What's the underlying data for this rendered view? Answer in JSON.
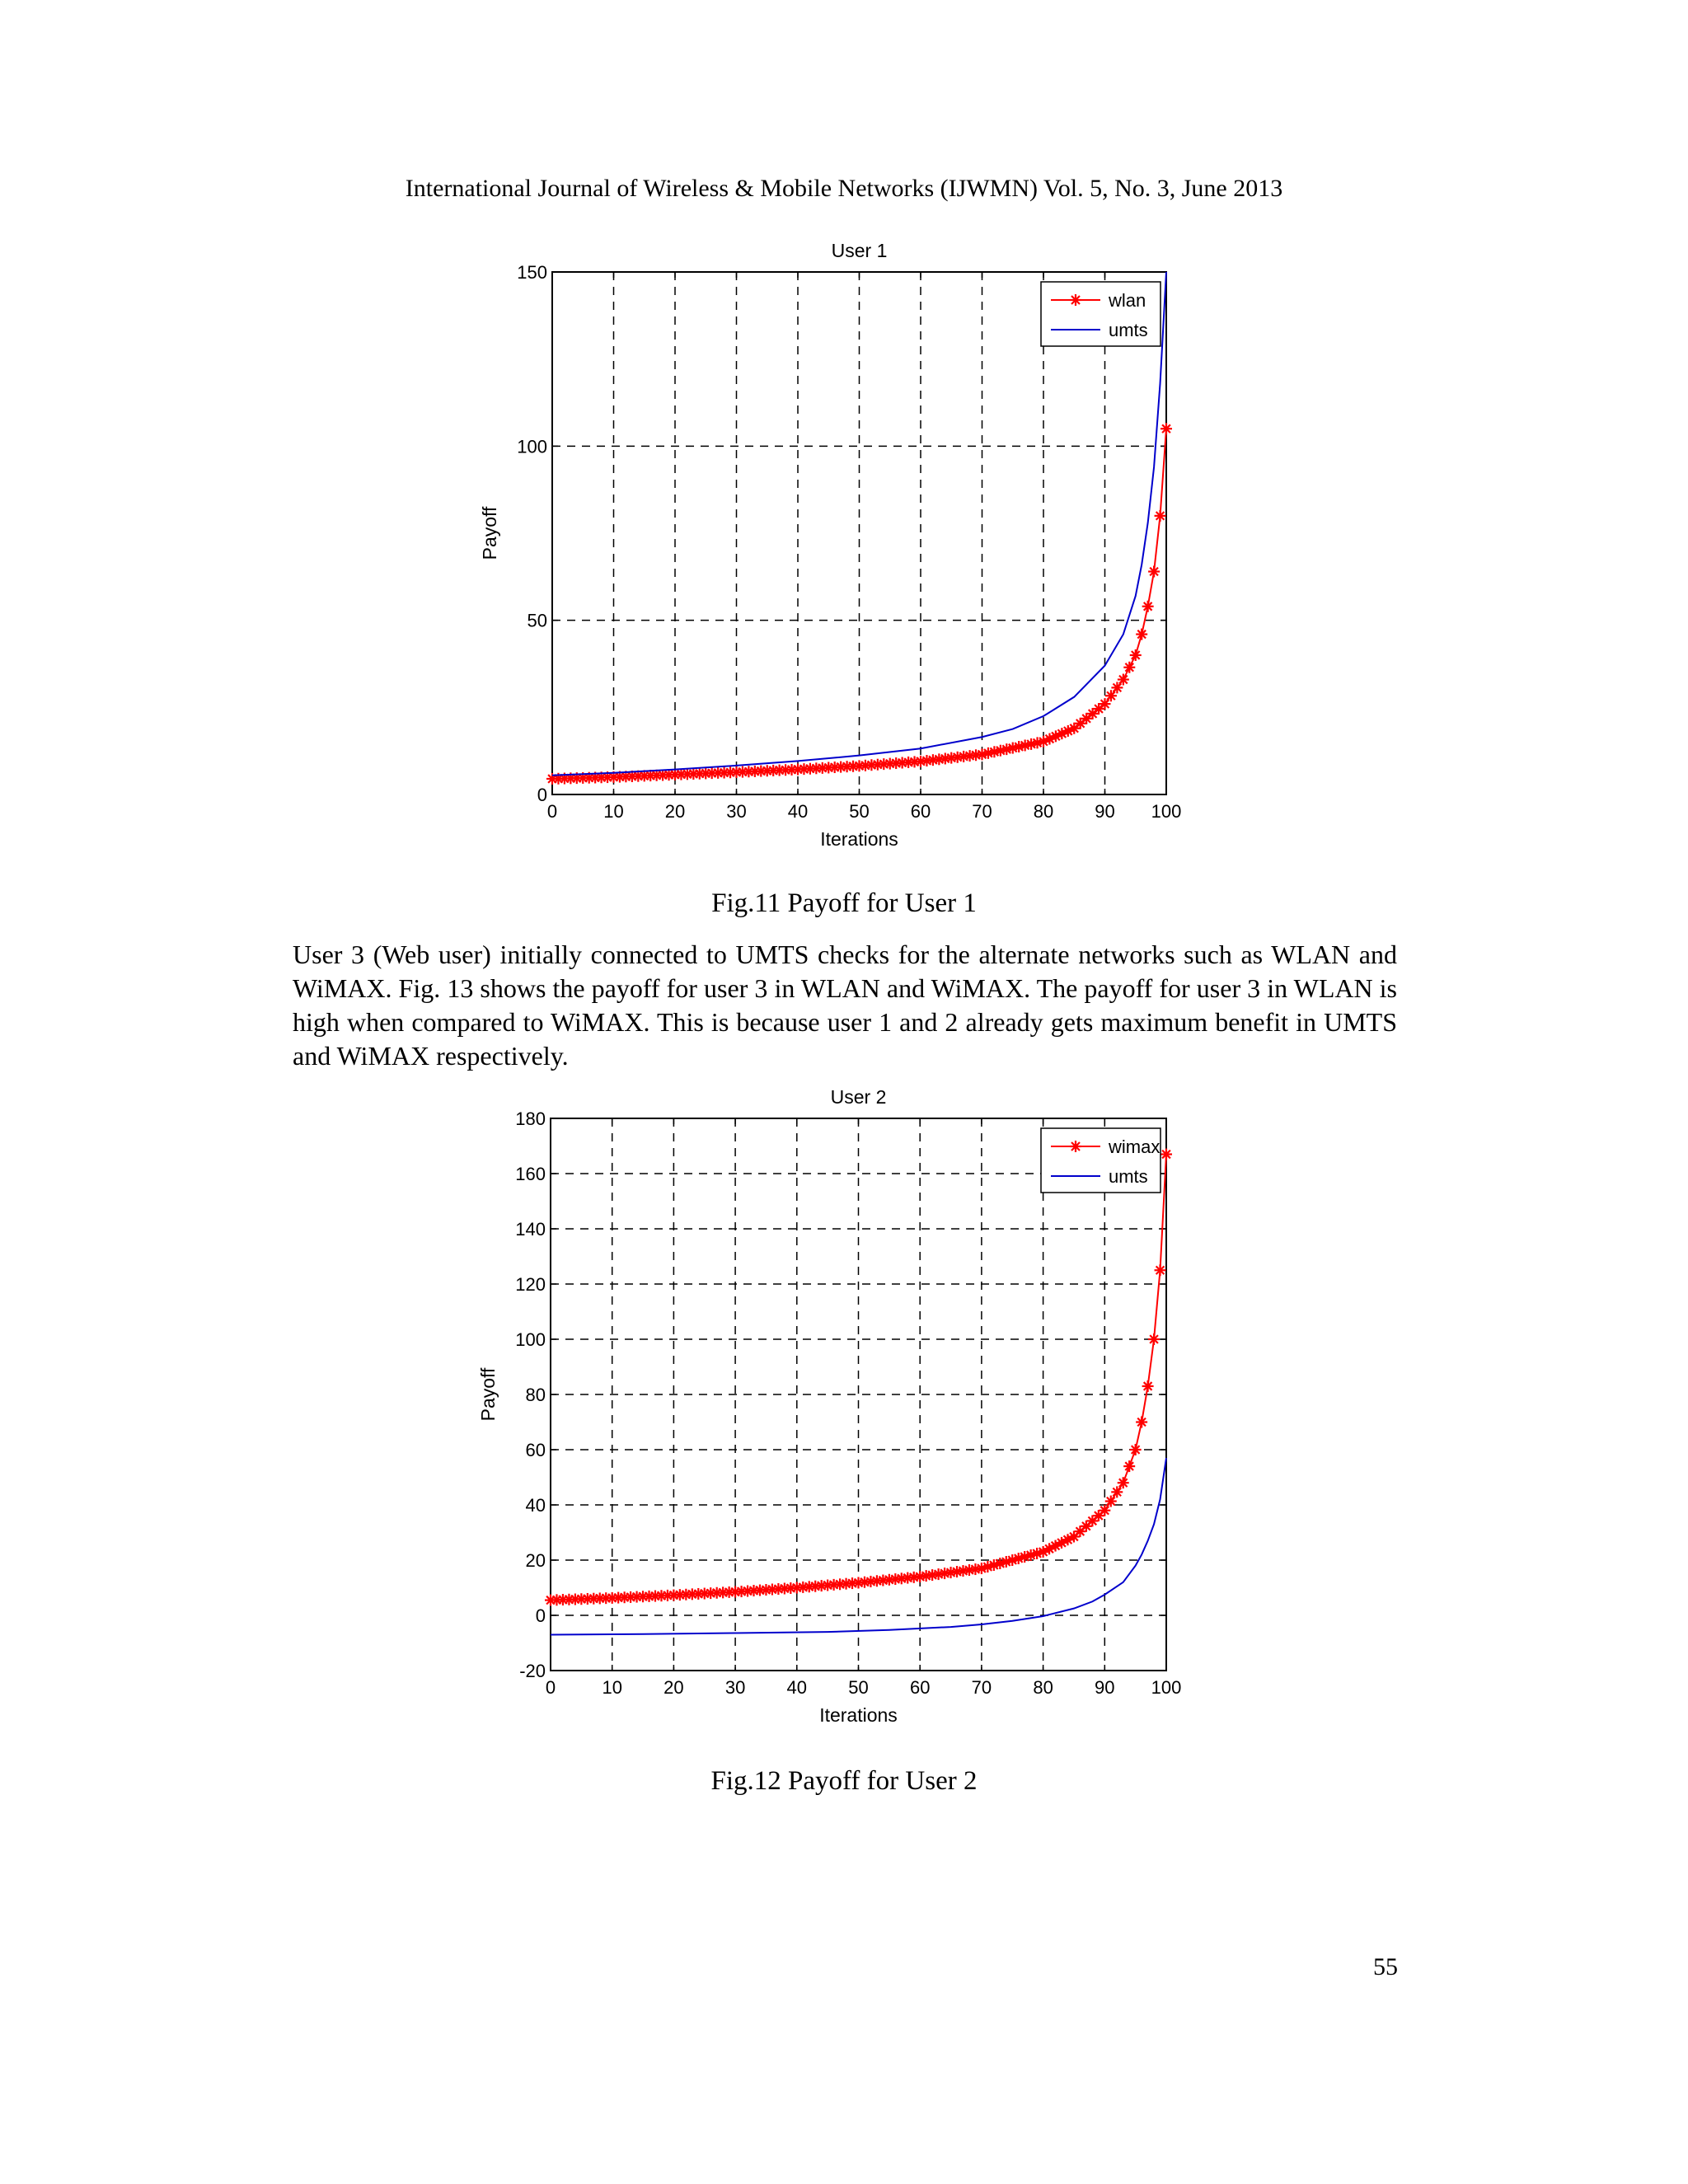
{
  "header": "International Journal of Wireless & Mobile Networks (IJWMN) Vol. 5, No. 3, June 2013",
  "figure11": {
    "caption": "Fig.11 Payoff for User 1"
  },
  "paragraph": "User 3 (Web user) initially connected to UMTS checks for the alternate networks such as WLAN and WiMAX. Fig. 13 shows the payoff for user 3 in WLAN and WiMAX. The payoff for user 3 in WLAN is high when compared to WiMAX. This is because user 1 and 2 already gets maximum benefit in UMTS and WiMAX respectively.",
  "figure12": {
    "caption": "Fig.12 Payoff for User 2"
  },
  "page_number": "55",
  "chart_data": [
    {
      "type": "line",
      "title": "User 1",
      "xlabel": "Iterations",
      "ylabel": "Payoff",
      "xlim": [
        0,
        100
      ],
      "ylim": [
        0,
        150
      ],
      "xticks": [
        0,
        10,
        20,
        30,
        40,
        50,
        60,
        70,
        80,
        90,
        100
      ],
      "yticks": [
        0,
        50,
        100,
        150
      ],
      "grid": true,
      "legend_position": "top-right",
      "series": [
        {
          "name": "wlan",
          "color": "#ff0000",
          "marker": "asterisk",
          "x": [
            0,
            10,
            20,
            30,
            40,
            50,
            60,
            70,
            80,
            85,
            90,
            93,
            95,
            96,
            97,
            98,
            99,
            100
          ],
          "y": [
            4.5,
            5,
            5.7,
            6.4,
            7.2,
            8.2,
            9.5,
            11.5,
            15.2,
            19,
            26,
            33,
            40,
            46,
            54,
            64,
            80,
            105
          ]
        },
        {
          "name": "umts",
          "color": "#0000cc",
          "marker": "none",
          "x": [
            0,
            10,
            20,
            30,
            40,
            50,
            60,
            70,
            75,
            80,
            85,
            90,
            93,
            95,
            96,
            97,
            98,
            99,
            100
          ],
          "y": [
            5.5,
            6.2,
            7.2,
            8.3,
            9.6,
            11.2,
            13.2,
            16.5,
            18.8,
            22.5,
            28,
            37,
            46,
            57,
            66,
            78,
            94,
            118,
            150
          ]
        }
      ]
    },
    {
      "type": "line",
      "title": "User 2",
      "xlabel": "Iterations",
      "ylabel": "Payoff",
      "xlim": [
        0,
        100
      ],
      "ylim": [
        -20,
        180
      ],
      "xticks": [
        0,
        10,
        20,
        30,
        40,
        50,
        60,
        70,
        80,
        90,
        100
      ],
      "yticks": [
        -20,
        0,
        20,
        40,
        60,
        80,
        100,
        120,
        140,
        160,
        180
      ],
      "grid": true,
      "legend_position": "top-right",
      "series": [
        {
          "name": "wimax",
          "color": "#ff0000",
          "marker": "asterisk",
          "x": [
            0,
            10,
            20,
            30,
            40,
            50,
            60,
            70,
            80,
            85,
            90,
            93,
            95,
            96,
            97,
            98,
            99,
            100
          ],
          "y": [
            5.5,
            6.3,
            7.3,
            8.5,
            10,
            11.8,
            14,
            17,
            23,
            28.5,
            38,
            48,
            60,
            70,
            83,
            100,
            125,
            167
          ]
        },
        {
          "name": "umts",
          "color": "#0000cc",
          "marker": "none",
          "x": [
            0,
            15,
            30,
            45,
            55,
            65,
            70,
            75,
            80,
            85,
            88,
            90,
            93,
            95,
            96,
            97,
            98,
            99,
            100
          ],
          "y": [
            -7,
            -6.8,
            -6.4,
            -6,
            -5.3,
            -4.2,
            -3.3,
            -2,
            -0.3,
            2.5,
            5,
            7.5,
            12,
            18,
            22,
            27,
            33,
            42,
            57
          ]
        }
      ]
    }
  ]
}
